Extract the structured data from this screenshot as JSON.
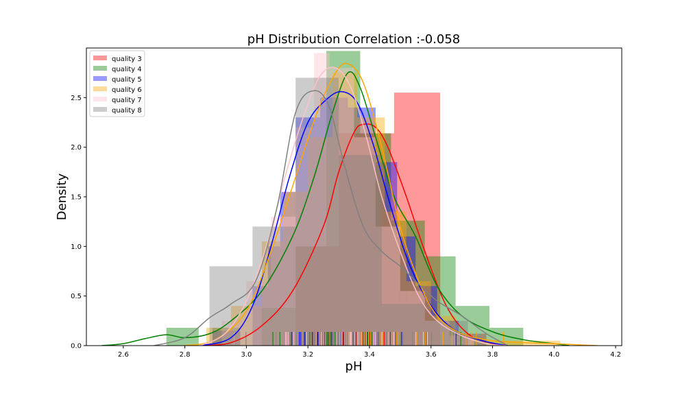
{
  "chart_data": {
    "type": "histogram",
    "title": "pH Distribution Correlation :-0.058",
    "xlabel": "pH",
    "ylabel": "Density",
    "xlim": [
      2.48,
      4.22
    ],
    "ylim": [
      0,
      3.0
    ],
    "xticks": [
      2.6,
      2.8,
      3.0,
      3.2,
      3.4,
      3.6,
      3.8,
      4.0,
      4.2
    ],
    "xtick_labels": [
      "2.6",
      "2.8",
      "3.0",
      "3.2",
      "3.4",
      "3.6",
      "3.8",
      "4.0",
      "4.2"
    ],
    "yticks": [
      0.0,
      0.5,
      1.0,
      1.5,
      2.0,
      2.5
    ],
    "ytick_labels": [
      "0.0",
      "0.5",
      "1.0",
      "1.5",
      "2.0",
      "2.5"
    ],
    "legend_position": "top-left",
    "grid": false,
    "series": [
      {
        "name": "quality 3",
        "color": "#ff0000",
        "hist": [
          {
            "x0": 3.16,
            "x1": 3.3,
            "y": 1.0
          },
          {
            "x0": 3.3,
            "x1": 3.44,
            "y": 2.14
          },
          {
            "x0": 3.44,
            "x1": 3.48,
            "y": 2.14
          },
          {
            "x0": 3.48,
            "x1": 3.63,
            "y": 2.55
          }
        ],
        "kde": [
          [
            2.85,
            0.0
          ],
          [
            2.95,
            0.03
          ],
          [
            3.05,
            0.2
          ],
          [
            3.15,
            0.55
          ],
          [
            3.25,
            1.2
          ],
          [
            3.3,
            1.75
          ],
          [
            3.35,
            2.15
          ],
          [
            3.38,
            2.23
          ],
          [
            3.42,
            2.2
          ],
          [
            3.46,
            2.0
          ],
          [
            3.52,
            1.5
          ],
          [
            3.58,
            0.95
          ],
          [
            3.65,
            0.4
          ],
          [
            3.72,
            0.12
          ],
          [
            3.8,
            0.02
          ],
          [
            3.85,
            0.0
          ]
        ]
      },
      {
        "name": "quality 4",
        "color": "#008000",
        "hist": [
          {
            "x0": 2.74,
            "x1": 2.845,
            "y": 0.18
          },
          {
            "x0": 2.89,
            "x1": 2.98,
            "y": 0.18
          },
          {
            "x0": 3.05,
            "x1": 3.16,
            "y": 0.38
          },
          {
            "x0": 3.16,
            "x1": 3.26,
            "y": 1.0
          },
          {
            "x0": 3.26,
            "x1": 3.37,
            "y": 2.97
          },
          {
            "x0": 3.37,
            "x1": 3.47,
            "y": 2.14
          },
          {
            "x0": 3.47,
            "x1": 3.58,
            "y": 1.26
          },
          {
            "x0": 3.58,
            "x1": 3.68,
            "y": 0.9
          },
          {
            "x0": 3.68,
            "x1": 3.79,
            "y": 0.4
          },
          {
            "x0": 3.79,
            "x1": 3.9,
            "y": 0.18
          }
        ],
        "kde": [
          [
            2.53,
            0.0
          ],
          [
            2.6,
            0.02
          ],
          [
            2.67,
            0.07
          ],
          [
            2.74,
            0.11
          ],
          [
            2.8,
            0.08
          ],
          [
            2.88,
            0.12
          ],
          [
            2.95,
            0.25
          ],
          [
            3.05,
            0.55
          ],
          [
            3.15,
            1.1
          ],
          [
            3.22,
            1.7
          ],
          [
            3.28,
            2.35
          ],
          [
            3.33,
            2.75
          ],
          [
            3.37,
            2.6
          ],
          [
            3.42,
            2.1
          ],
          [
            3.48,
            1.5
          ],
          [
            3.55,
            1.1
          ],
          [
            3.62,
            0.6
          ],
          [
            3.7,
            0.3
          ],
          [
            3.8,
            0.14
          ],
          [
            3.9,
            0.06
          ],
          [
            4.0,
            0.02
          ],
          [
            4.05,
            0.0
          ]
        ]
      },
      {
        "name": "quality 5",
        "color": "#0000ff",
        "hist": [
          {
            "x0": 2.89,
            "x1": 2.98,
            "y": 0.15
          },
          {
            "x0": 3.02,
            "x1": 3.07,
            "y": 0.6
          },
          {
            "x0": 3.07,
            "x1": 3.11,
            "y": 1.0
          },
          {
            "x0": 3.11,
            "x1": 3.16,
            "y": 1.55
          },
          {
            "x0": 3.16,
            "x1": 3.24,
            "y": 2.3
          },
          {
            "x0": 3.24,
            "x1": 3.33,
            "y": 2.5
          },
          {
            "x0": 3.33,
            "x1": 3.42,
            "y": 2.4
          },
          {
            "x0": 3.42,
            "x1": 3.49,
            "y": 1.85
          },
          {
            "x0": 3.49,
            "x1": 3.55,
            "y": 1.1
          },
          {
            "x0": 3.55,
            "x1": 3.62,
            "y": 0.6
          },
          {
            "x0": 3.62,
            "x1": 3.69,
            "y": 0.25
          },
          {
            "x0": 3.69,
            "x1": 3.78,
            "y": 0.12
          }
        ],
        "kde": [
          [
            2.85,
            0.0
          ],
          [
            2.95,
            0.08
          ],
          [
            3.02,
            0.4
          ],
          [
            3.08,
            1.0
          ],
          [
            3.14,
            1.7
          ],
          [
            3.2,
            2.25
          ],
          [
            3.26,
            2.48
          ],
          [
            3.31,
            2.56
          ],
          [
            3.36,
            2.45
          ],
          [
            3.41,
            2.05
          ],
          [
            3.46,
            1.5
          ],
          [
            3.52,
            0.9
          ],
          [
            3.58,
            0.5
          ],
          [
            3.64,
            0.25
          ],
          [
            3.7,
            0.12
          ],
          [
            3.78,
            0.04
          ],
          [
            3.85,
            0.0
          ]
        ]
      },
      {
        "name": "quality 6",
        "color": "#ffa500",
        "hist": [
          {
            "x0": 2.87,
            "x1": 2.95,
            "y": 0.18
          },
          {
            "x0": 2.95,
            "x1": 3.05,
            "y": 0.4
          },
          {
            "x0": 3.05,
            "x1": 3.12,
            "y": 1.05
          },
          {
            "x0": 3.12,
            "x1": 3.2,
            "y": 1.55
          },
          {
            "x0": 3.2,
            "x1": 3.28,
            "y": 2.1
          },
          {
            "x0": 3.28,
            "x1": 3.36,
            "y": 2.75
          },
          {
            "x0": 3.36,
            "x1": 3.45,
            "y": 2.3
          },
          {
            "x0": 3.45,
            "x1": 3.52,
            "y": 1.35
          },
          {
            "x0": 3.52,
            "x1": 3.6,
            "y": 0.65
          },
          {
            "x0": 3.6,
            "x1": 3.68,
            "y": 0.3
          },
          {
            "x0": 3.68,
            "x1": 3.78,
            "y": 0.12
          },
          {
            "x0": 3.78,
            "x1": 3.92,
            "y": 0.05
          },
          {
            "x0": 3.92,
            "x1": 4.02,
            "y": 0.05
          }
        ],
        "kde": [
          [
            2.8,
            0.0
          ],
          [
            2.9,
            0.06
          ],
          [
            3.0,
            0.35
          ],
          [
            3.08,
            0.95
          ],
          [
            3.16,
            1.7
          ],
          [
            3.23,
            2.35
          ],
          [
            3.29,
            2.75
          ],
          [
            3.33,
            2.84
          ],
          [
            3.38,
            2.65
          ],
          [
            3.44,
            2.0
          ],
          [
            3.5,
            1.2
          ],
          [
            3.56,
            0.65
          ],
          [
            3.62,
            0.3
          ],
          [
            3.7,
            0.12
          ],
          [
            3.8,
            0.05
          ],
          [
            3.9,
            0.03
          ],
          [
            4.0,
            0.02
          ],
          [
            4.14,
            0.0
          ]
        ]
      },
      {
        "name": "quality 7",
        "color": "#ffc0cb",
        "hist": [
          {
            "x0": 2.92,
            "x1": 3.0,
            "y": 0.25
          },
          {
            "x0": 3.0,
            "x1": 3.08,
            "y": 0.65
          },
          {
            "x0": 3.08,
            "x1": 3.16,
            "y": 1.3
          },
          {
            "x0": 3.16,
            "x1": 3.22,
            "y": 2.2
          },
          {
            "x0": 3.22,
            "x1": 3.27,
            "y": 2.95
          },
          {
            "x0": 3.27,
            "x1": 3.35,
            "y": 2.8
          },
          {
            "x0": 3.35,
            "x1": 3.42,
            "y": 2.1
          },
          {
            "x0": 3.42,
            "x1": 3.5,
            "y": 1.2
          },
          {
            "x0": 3.5,
            "x1": 3.58,
            "y": 0.55
          },
          {
            "x0": 3.58,
            "x1": 3.66,
            "y": 0.25
          },
          {
            "x0": 3.66,
            "x1": 3.74,
            "y": 0.1
          }
        ],
        "kde": [
          [
            2.85,
            0.0
          ],
          [
            2.93,
            0.12
          ],
          [
            3.0,
            0.45
          ],
          [
            3.07,
            1.05
          ],
          [
            3.13,
            1.75
          ],
          [
            3.19,
            2.35
          ],
          [
            3.24,
            2.72
          ],
          [
            3.29,
            2.8
          ],
          [
            3.34,
            2.6
          ],
          [
            3.39,
            2.1
          ],
          [
            3.44,
            1.5
          ],
          [
            3.5,
            0.95
          ],
          [
            3.56,
            0.5
          ],
          [
            3.62,
            0.25
          ],
          [
            3.7,
            0.1
          ],
          [
            3.78,
            0.02
          ],
          [
            3.85,
            0.0
          ]
        ]
      },
      {
        "name": "quality 8",
        "color": "#808080",
        "hist": [
          {
            "x0": 2.88,
            "x1": 3.02,
            "y": 0.8
          },
          {
            "x0": 3.02,
            "x1": 3.16,
            "y": 1.2
          },
          {
            "x0": 3.16,
            "x1": 3.3,
            "y": 2.7
          },
          {
            "x0": 3.3,
            "x1": 3.44,
            "y": 1.92
          },
          {
            "x0": 3.44,
            "x1": 3.58,
            "y": 0.42
          },
          {
            "x0": 3.58,
            "x1": 3.72,
            "y": 0.25
          }
        ],
        "kde": [
          [
            2.7,
            0.0
          ],
          [
            2.8,
            0.08
          ],
          [
            2.88,
            0.28
          ],
          [
            2.95,
            0.42
          ],
          [
            3.03,
            0.65
          ],
          [
            3.1,
            1.4
          ],
          [
            3.16,
            2.35
          ],
          [
            3.22,
            2.57
          ],
          [
            3.27,
            2.4
          ],
          [
            3.32,
            1.8
          ],
          [
            3.38,
            1.2
          ],
          [
            3.44,
            0.95
          ],
          [
            3.5,
            0.8
          ],
          [
            3.56,
            0.62
          ],
          [
            3.62,
            0.45
          ],
          [
            3.7,
            0.3
          ],
          [
            3.78,
            0.12
          ],
          [
            3.85,
            0.0
          ]
        ]
      }
    ]
  }
}
